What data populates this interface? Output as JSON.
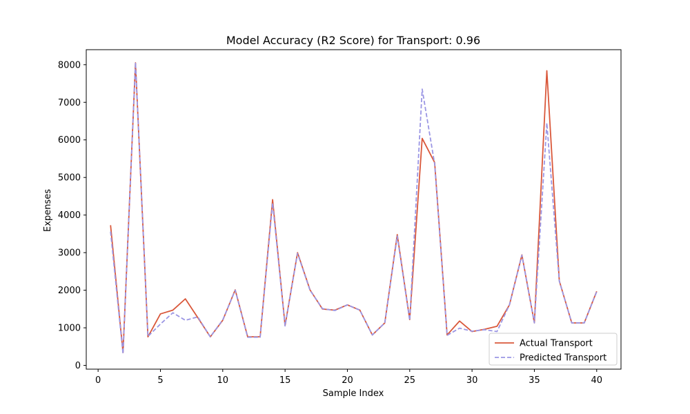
{
  "chart_data": {
    "type": "line",
    "title": "Model Accuracy (R2 Score) for Transport: 0.96",
    "xlabel": "Sample Index",
    "ylabel": "Expenses",
    "xlim": [
      -0.95,
      41.95
    ],
    "ylim": [
      -100,
      8400
    ],
    "xticks": [
      0,
      5,
      10,
      15,
      20,
      25,
      30,
      35,
      40
    ],
    "yticks": [
      0,
      1000,
      2000,
      3000,
      4000,
      5000,
      6000,
      7000,
      8000
    ],
    "grid": false,
    "legend_position": "lower-right",
    "x": [
      1,
      2,
      3,
      4,
      5,
      6,
      7,
      8,
      9,
      10,
      11,
      12,
      13,
      14,
      15,
      16,
      17,
      18,
      19,
      20,
      21,
      22,
      23,
      24,
      25,
      26,
      27,
      28,
      29,
      30,
      31,
      32,
      33,
      34,
      35,
      36,
      37,
      38,
      39,
      40
    ],
    "series": [
      {
        "name": "Actual Transport",
        "color": "#d9573a",
        "style": "solid",
        "values": [
          3730,
          340,
          8050,
          760,
          1370,
          1470,
          1770,
          1270,
          760,
          1200,
          2010,
          760,
          760,
          4410,
          1060,
          3000,
          2010,
          1500,
          1470,
          1610,
          1470,
          810,
          1130,
          3480,
          1220,
          6040,
          5400,
          810,
          1180,
          900,
          960,
          1040,
          1610,
          2940,
          1130,
          7840,
          2250,
          1130,
          1130,
          1970
        ]
      },
      {
        "name": "Predicted Transport",
        "color": "#9b96e4",
        "style": "dashed",
        "values": [
          3560,
          310,
          8060,
          770,
          1100,
          1400,
          1200,
          1290,
          760,
          1210,
          2000,
          750,
          750,
          4320,
          1050,
          2980,
          2000,
          1510,
          1460,
          1610,
          1470,
          810,
          1130,
          3440,
          1200,
          7350,
          5360,
          800,
          990,
          910,
          950,
          900,
          1610,
          2930,
          1130,
          6450,
          2240,
          1130,
          1130,
          1960
        ]
      }
    ]
  }
}
